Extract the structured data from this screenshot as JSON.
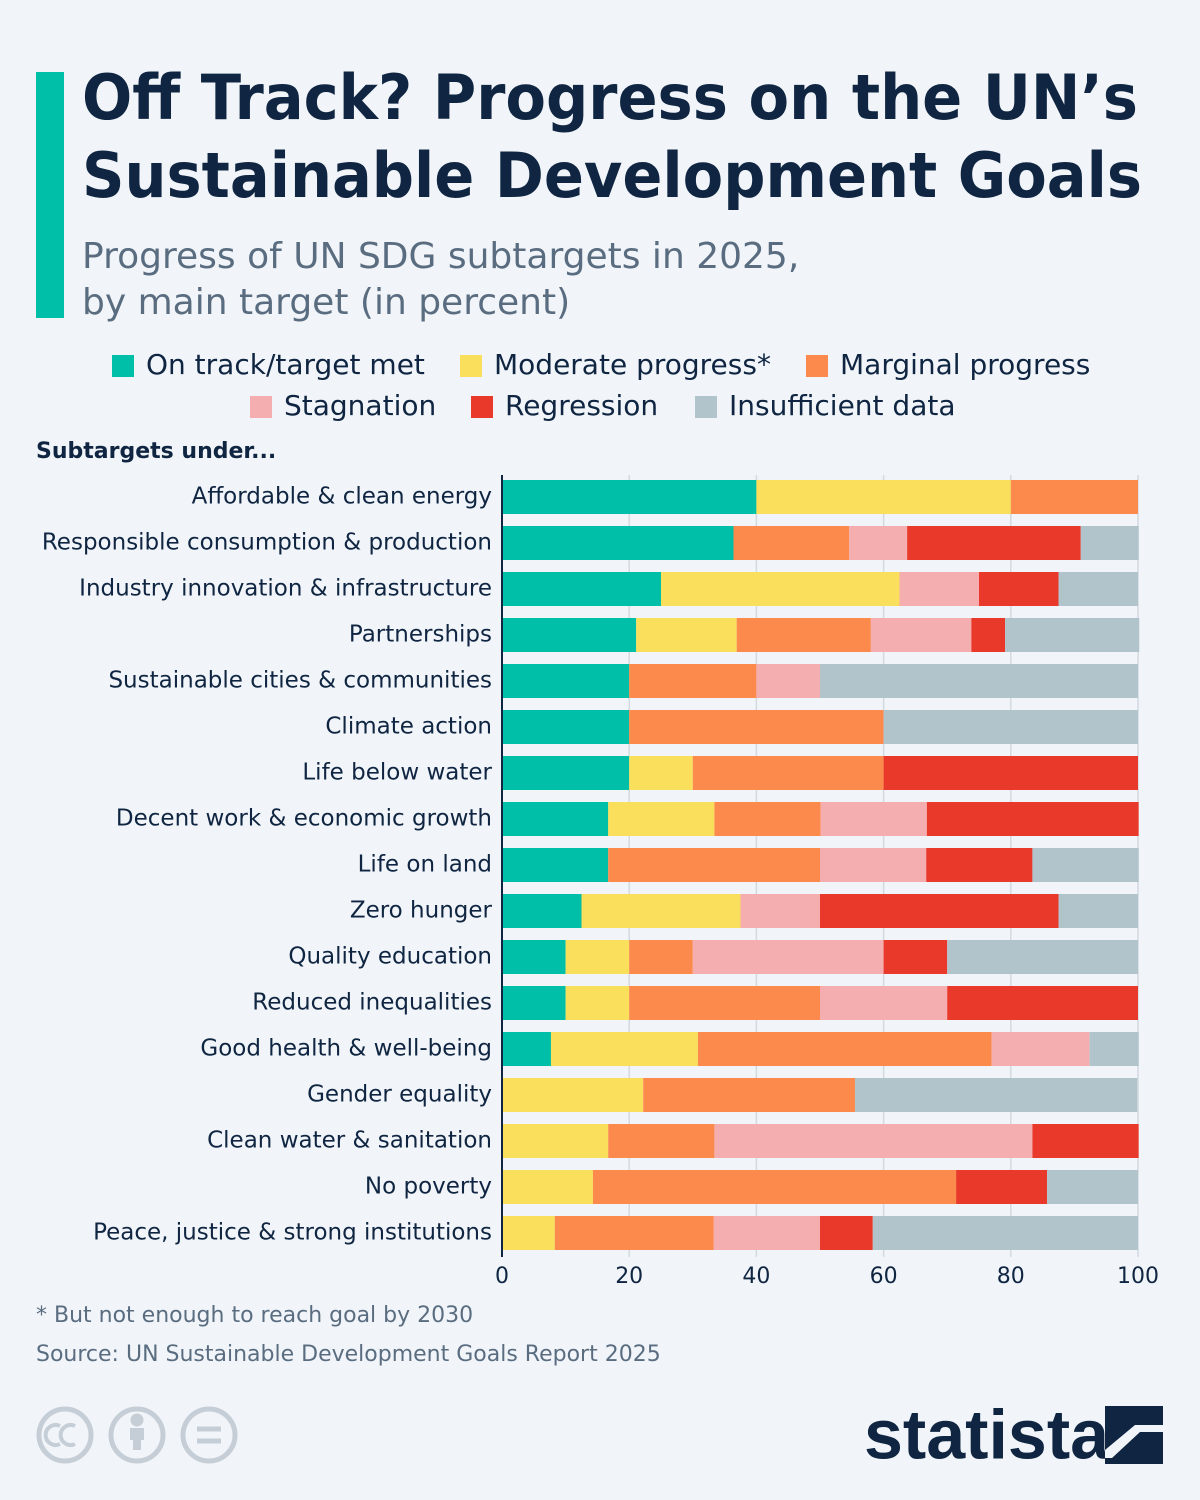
{
  "chart_data": {
    "type": "stacked-bar-horizontal",
    "title": [
      "Off Track? Progress on the UN’s",
      "Sustainable Development Goals"
    ],
    "subtitle": [
      "Progress of UN SDG subtargets in 2025,",
      "by main target (in percent)"
    ],
    "y_axis_label": "Subtargets under...",
    "categories": [
      "Affordable & clean energy",
      "Responsible consumption & production",
      "Industry innovation & infrastructure",
      "Partnerships",
      "Sustainable cities & communities",
      "Climate action",
      "Life below water",
      "Decent work & economic growth",
      "Life on land",
      "Zero hunger",
      "Quality education",
      "Reduced inequalities",
      "Good health & well-being",
      "Gender equality",
      "Clean water & sanitation",
      "No poverty",
      "Peace, justice & strong institutions"
    ],
    "series": [
      {
        "name": "On track/target met",
        "color": "#00bfa9",
        "values": [
          40,
          36.4,
          25,
          21.1,
          20,
          20,
          20,
          16.7,
          16.7,
          12.5,
          10,
          10,
          7.7,
          0,
          0,
          0,
          0
        ]
      },
      {
        "name": "Moderate progress*",
        "color": "#f9df5b",
        "values": [
          40,
          0,
          37.5,
          15.8,
          0,
          0,
          10,
          16.7,
          0,
          25,
          10,
          10,
          23.1,
          22.2,
          16.7,
          14.3,
          8.3
        ]
      },
      {
        "name": "Marginal progress",
        "color": "#fd8a4d",
        "values": [
          20,
          18.2,
          0,
          21.1,
          20,
          40,
          30,
          16.7,
          33.3,
          0,
          10,
          30,
          46.2,
          33.3,
          16.7,
          57.1,
          25
        ]
      },
      {
        "name": "Stagnation",
        "color": "#f5aeb0",
        "values": [
          0,
          9.1,
          12.5,
          15.8,
          10,
          0,
          0,
          16.7,
          16.7,
          12.5,
          30,
          20,
          15.4,
          0,
          50,
          0,
          16.7
        ]
      },
      {
        "name": "Regression",
        "color": "#e8392b",
        "values": [
          0,
          27.3,
          12.5,
          5.3,
          0,
          0,
          40,
          33.3,
          16.7,
          37.5,
          10,
          30,
          0,
          0,
          16.7,
          14.3,
          8.3
        ]
      },
      {
        "name": "Insufficient data",
        "color": "#b1c4cc",
        "values": [
          0,
          9.1,
          12.5,
          21.1,
          50,
          40,
          0,
          0,
          16.7,
          12.5,
          30,
          0,
          7.7,
          44.4,
          0,
          14.3,
          41.7
        ]
      }
    ],
    "xlim": [
      0,
      100
    ],
    "xticks": [
      0,
      20,
      40,
      60,
      80,
      100
    ],
    "grid": true,
    "footnote": "* But not enough to reach goal by 2030",
    "source": "Source: UN Sustainable Development Goals Report 2025",
    "logo_text": "statista"
  }
}
